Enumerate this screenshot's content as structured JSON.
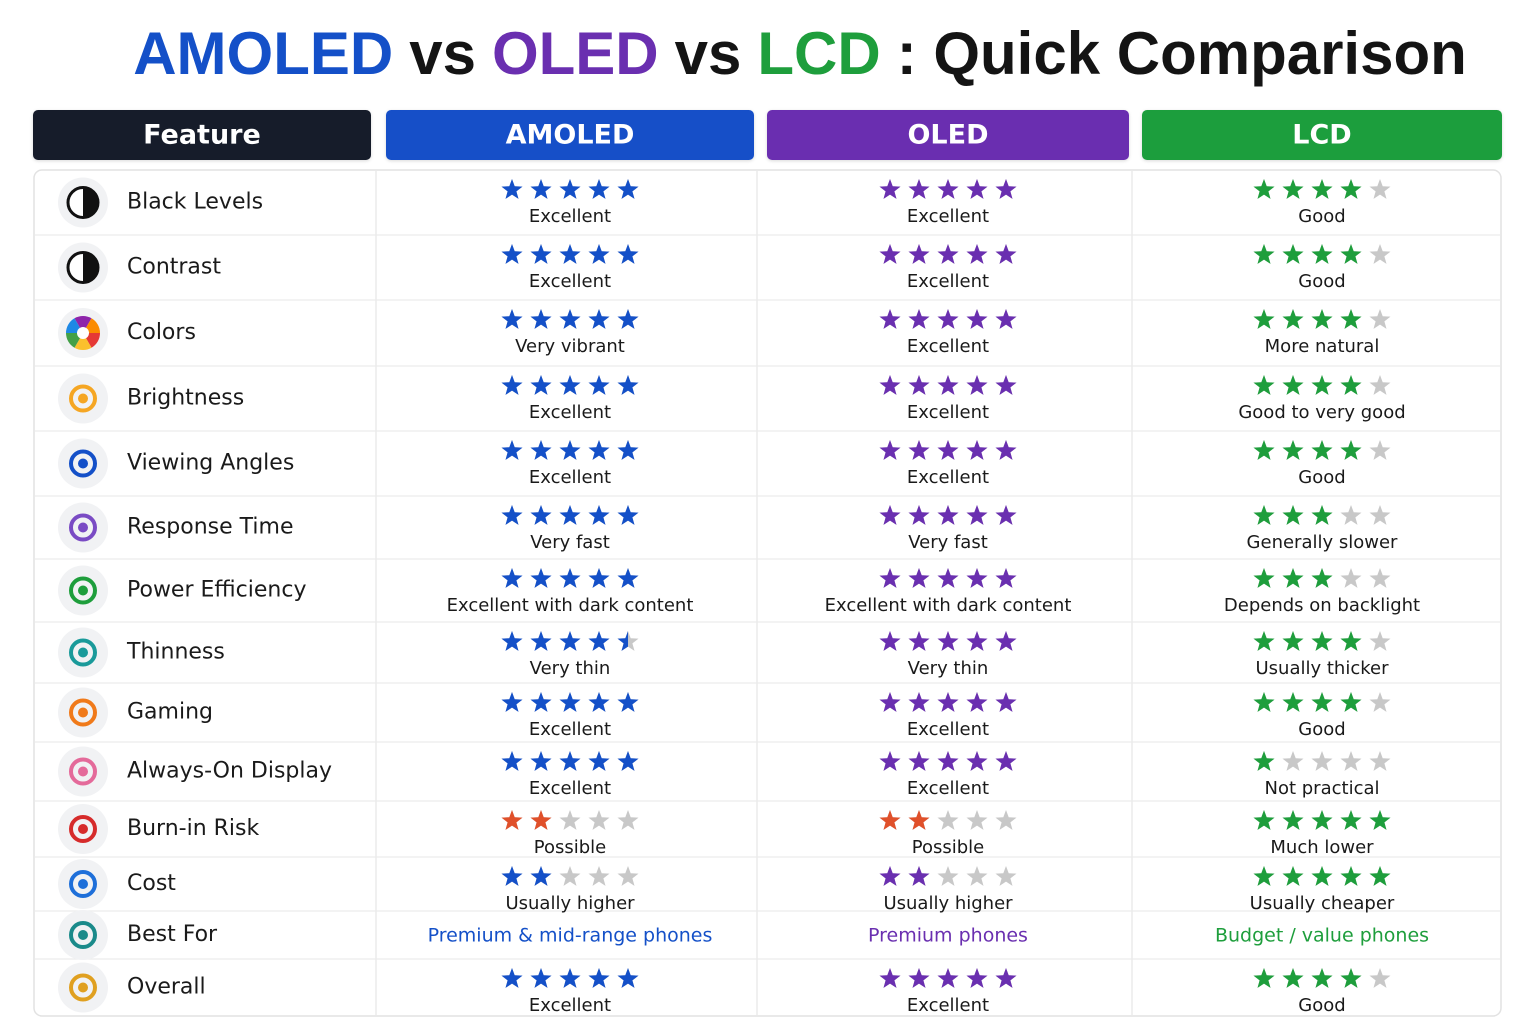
{
  "title": [
    "AMOLED",
    "vs",
    "OLED",
    "vs",
    "LCD",
    ": Quick Comparison"
  ],
  "title_colors": [
    "#1450c8",
    "#141414",
    "#6a2fb0",
    "#141414",
    "#1e9e3c",
    "#141414"
  ],
  "header": {
    "feature": "Feature",
    "feature_color": "#141c2b"
  },
  "columns": [
    {
      "name": "AMOLED",
      "color": "#1450c8"
    },
    {
      "name": "OLED",
      "color": "#6a2fb0"
    },
    {
      "name": "LCD",
      "color": "#1e9e3c"
    }
  ],
  "empty_star_color": "#c8c8c8",
  "rows": [
    {
      "feature": "Black Levels",
      "cells": [
        {
          "rating": 5,
          "text": "Excellent"
        },
        {
          "rating": 5,
          "text": "Excellent"
        },
        {
          "rating": 4,
          "text": "Good"
        }
      ]
    },
    {
      "feature": "Contrast",
      "cells": [
        {
          "rating": 5,
          "text": "Excellent"
        },
        {
          "rating": 5,
          "text": "Excellent"
        },
        {
          "rating": 4,
          "text": "Good"
        }
      ]
    },
    {
      "feature": "Colors",
      "cells": [
        {
          "rating": 5,
          "text": "Very vibrant"
        },
        {
          "rating": 5,
          "text": "Excellent"
        },
        {
          "rating": 4,
          "text": "More natural"
        }
      ]
    },
    {
      "feature": "Brightness",
      "cells": [
        {
          "rating": 5,
          "text": "Excellent"
        },
        {
          "rating": 5,
          "text": "Excellent"
        },
        {
          "rating": 4,
          "text": "Good to very good"
        }
      ]
    },
    {
      "feature": "Viewing Angles",
      "cells": [
        {
          "rating": 5,
          "text": "Excellent"
        },
        {
          "rating": 5,
          "text": "Excellent"
        },
        {
          "rating": 4,
          "text": "Good"
        }
      ]
    },
    {
      "feature": "Response Time",
      "cells": [
        {
          "rating": 5,
          "text": "Very fast"
        },
        {
          "rating": 5,
          "text": "Very fast"
        },
        {
          "rating": 3,
          "text": "Generally slower"
        }
      ]
    },
    {
      "feature": "Power Efficiency",
      "cells": [
        {
          "rating": 5,
          "text": "Excellent with dark content"
        },
        {
          "rating": 5,
          "text": "Excellent with dark content"
        },
        {
          "rating": 3,
          "text": "Depends on backlight"
        }
      ]
    },
    {
      "feature": "Thinness",
      "cells": [
        {
          "rating": 4.5,
          "text": "Very thin"
        },
        {
          "rating": 5,
          "text": "Very thin"
        },
        {
          "rating": 4,
          "text": "Usually thicker"
        }
      ]
    },
    {
      "feature": "Gaming",
      "cells": [
        {
          "rating": 5,
          "text": "Excellent"
        },
        {
          "rating": 5,
          "text": "Excellent"
        },
        {
          "rating": 4,
          "text": "Good"
        }
      ]
    },
    {
      "feature": "Always-On Display",
      "cells": [
        {
          "rating": 5,
          "text": "Excellent"
        },
        {
          "rating": 5,
          "text": "Excellent"
        },
        {
          "rating": 1,
          "text": "Not practical"
        }
      ]
    },
    {
      "feature": "Burn-in Risk",
      "cells": [
        {
          "rating": 2,
          "text": "Possible",
          "color": "#e0502a"
        },
        {
          "rating": 2,
          "text": "Possible",
          "color": "#e0502a"
        },
        {
          "rating": 5,
          "text": "Much lower"
        }
      ]
    },
    {
      "feature": "Cost",
      "cells": [
        {
          "rating": 2,
          "text": "Usually higher"
        },
        {
          "rating": 2,
          "text": "Usually higher"
        },
        {
          "rating": 5,
          "text": "Usually cheaper"
        }
      ]
    },
    {
      "feature": "Best For",
      "cells": [
        {
          "text": "Premium & mid-range phones"
        },
        {
          "text": "Premium phones"
        },
        {
          "text": "Budget / value phones"
        }
      ]
    },
    {
      "feature": "Overall",
      "cells": [
        {
          "rating": 5,
          "text": "Excellent"
        },
        {
          "rating": 5,
          "text": "Excellent"
        },
        {
          "rating": 4,
          "text": "Good"
        }
      ]
    }
  ]
}
